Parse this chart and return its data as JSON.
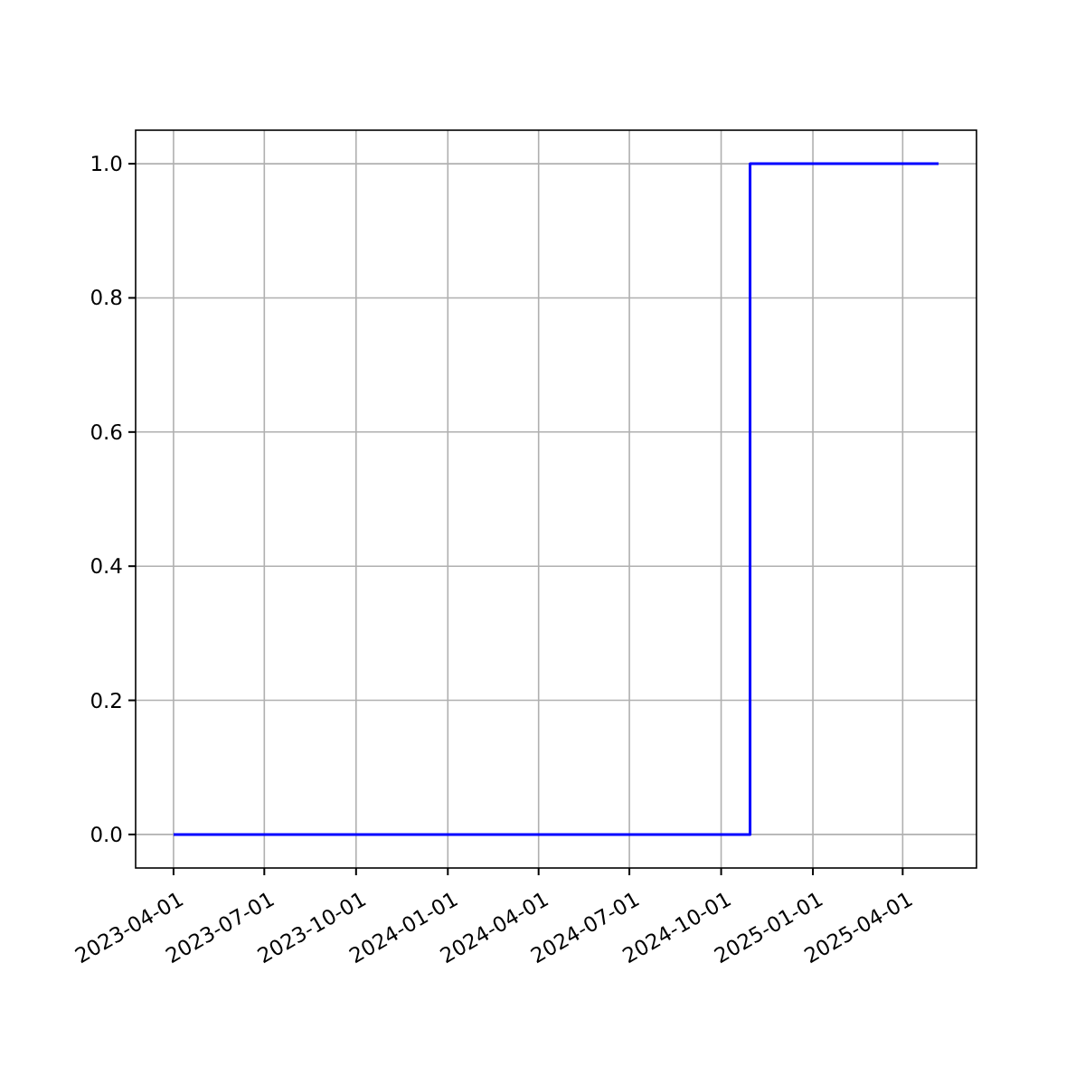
{
  "chart_data": {
    "type": "step",
    "x": [
      "2023-04-01",
      "2024-10-30",
      "2025-05-07"
    ],
    "series": [
      {
        "color": "#0000ff",
        "values": [
          0,
          1,
          1
        ]
      }
    ],
    "xlim": [
      "2023-02-22",
      "2025-06-14"
    ],
    "xticks": [
      "2023-04-01",
      "2023-07-01",
      "2023-10-01",
      "2024-01-01",
      "2024-04-01",
      "2024-07-01",
      "2024-10-01",
      "2025-01-01",
      "2025-04-01"
    ],
    "ylim": [
      -0.05,
      1.05
    ],
    "yticks": [
      {
        "value": 0,
        "label": "0.0"
      },
      {
        "value": 0.2,
        "label": "0.2"
      },
      {
        "value": 0.4,
        "label": "0.4"
      },
      {
        "value": 0.6,
        "label": "0.6"
      },
      {
        "value": 0.8,
        "label": "0.8"
      },
      {
        "value": 1,
        "label": "1.0"
      }
    ],
    "grid": true
  }
}
